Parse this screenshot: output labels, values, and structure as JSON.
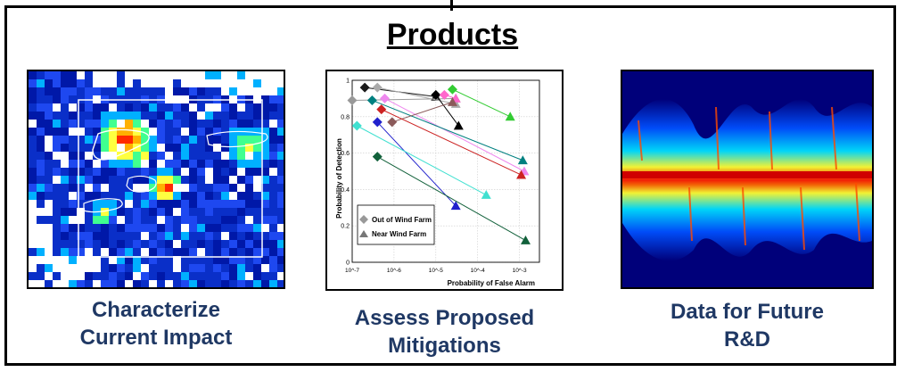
{
  "title": "Products",
  "panels": [
    {
      "caption_lines": [
        "Characterize",
        "Current Impact"
      ],
      "image": "radar-wind-farm-impact-map"
    },
    {
      "caption_lines": [
        "Assess Proposed",
        "Mitigations"
      ],
      "image": "detection-vs-false-alarm-chart"
    },
    {
      "caption_lines": [
        "Data for Future",
        "R&D"
      ],
      "image": "radar-doppler-spectrum"
    }
  ],
  "chart_data": {
    "type": "line",
    "xlabel": "Probability of False Alarm",
    "ylabel": "Probability of Detection",
    "xscale": "log",
    "xlim": [
      1e-07,
      0.003
    ],
    "ylim": [
      0,
      1
    ],
    "x_ticks": [
      "10^-7",
      "10^-6",
      "10^-5",
      "10^-4",
      "10^-3"
    ],
    "y_ticks": [
      "0",
      "0.2",
      "0.4",
      "0.6",
      "0.8",
      "1"
    ],
    "grid": true,
    "legend": {
      "position": "bottom-left",
      "entries": [
        {
          "label": "Out of Wind Farm",
          "marker": "diamond"
        },
        {
          "label": "Near Wind Farm",
          "marker": "triangle"
        }
      ]
    },
    "series": [
      {
        "color": "#1a1a1a",
        "from": [
          2e-07,
          0.96
        ],
        "to": [
          1e-05,
          0.91
        ]
      },
      {
        "color": "#999999",
        "from": [
          1e-07,
          0.89
        ],
        "to": [
          3e-05,
          0.9
        ]
      },
      {
        "color": "#aaaaaa",
        "from": [
          4e-07,
          0.96
        ],
        "to": [
          3e-05,
          0.87
        ]
      },
      {
        "color": "#ee88ee",
        "from": [
          6e-07,
          0.9
        ],
        "to": [
          0.0013,
          0.5
        ]
      },
      {
        "color": "#008080",
        "from": [
          3e-07,
          0.89
        ],
        "to": [
          0.0012,
          0.56
        ]
      },
      {
        "color": "#000000",
        "from": [
          1e-05,
          0.92
        ],
        "to": [
          3.5e-05,
          0.75
        ]
      },
      {
        "color": "#ff66cc",
        "from": [
          1.6e-05,
          0.92
        ],
        "to": [
          3e-05,
          0.9
        ]
      },
      {
        "color": "#33cc33",
        "from": [
          2.5e-05,
          0.95
        ],
        "to": [
          0.0006,
          0.8
        ]
      },
      {
        "color": "#8b5a5a",
        "from": [
          9e-07,
          0.77
        ],
        "to": [
          2.5e-05,
          0.88
        ]
      },
      {
        "color": "#cc2222",
        "from": [
          5e-07,
          0.84
        ],
        "to": [
          0.0011,
          0.48
        ]
      },
      {
        "color": "#2020cc",
        "from": [
          4e-07,
          0.77
        ],
        "to": [
          3e-05,
          0.31
        ]
      },
      {
        "color": "#40e0d0",
        "from": [
          1.3e-07,
          0.75
        ],
        "to": [
          0.00016,
          0.37
        ]
      },
      {
        "color": "#11603a",
        "from": [
          4e-07,
          0.58
        ],
        "to": [
          0.0014,
          0.12
        ]
      }
    ]
  }
}
